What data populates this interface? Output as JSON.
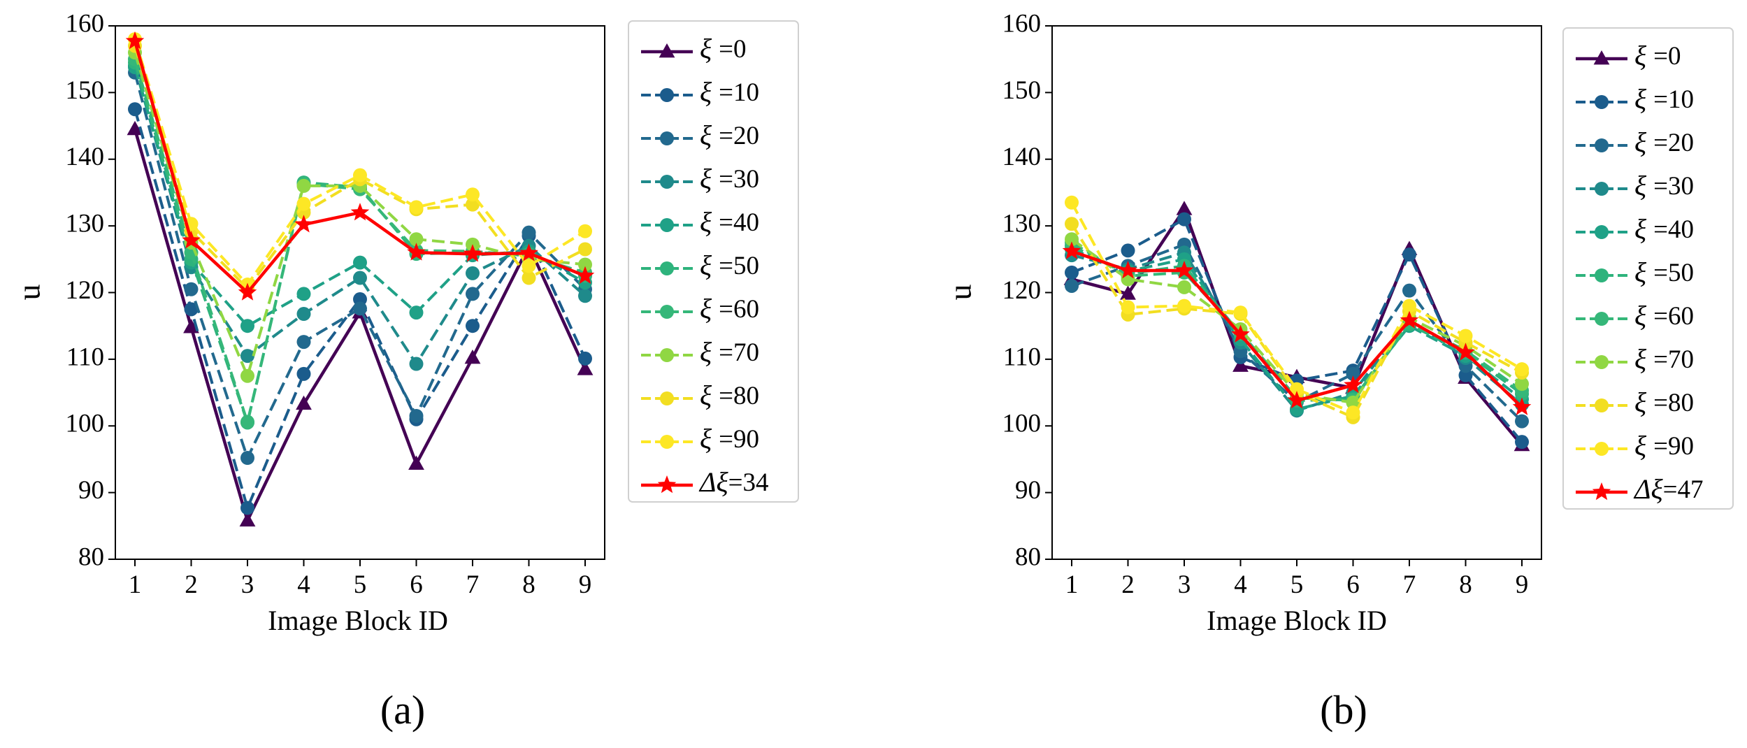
{
  "chart_data": [
    {
      "type": "line",
      "panel_label": "(a)",
      "xlabel": "Image Block ID",
      "ylabel": "u",
      "x": [
        1,
        2,
        3,
        4,
        5,
        6,
        7,
        8,
        9
      ],
      "ylim": [
        80,
        160
      ],
      "yticks": [
        80,
        90,
        100,
        110,
        120,
        130,
        140,
        150,
        160
      ],
      "legend_position": "outside-right",
      "series": [
        {
          "name": "=0",
          "symbol": "ξ",
          "color": "#440154",
          "style": "solid",
          "marker": "triangle",
          "values": [
            144.5,
            114.8,
            85.8,
            103.3,
            117.0,
            94.3,
            110.2,
            127.0,
            108.5
          ]
        },
        {
          "name": "=10",
          "symbol": "ξ",
          "color": "#1b5c8c",
          "style": "dashed",
          "marker": "circle",
          "values": [
            147.5,
            117.5,
            87.7,
            107.8,
            119.0,
            101.0,
            115.0,
            128.5,
            110.1
          ]
        },
        {
          "name": "=20",
          "symbol": "ξ",
          "color": "#22698e",
          "style": "dashed",
          "marker": "circle",
          "values": [
            153.0,
            120.5,
            95.2,
            112.6,
            117.6,
            101.5,
            119.8,
            129.0,
            120.5
          ]
        },
        {
          "name": "=30",
          "symbol": "ξ",
          "color": "#1f8a8b",
          "style": "dashed",
          "marker": "circle",
          "values": [
            154.0,
            123.8,
            110.5,
            116.8,
            122.2,
            109.3,
            122.9,
            127.0,
            119.5
          ]
        },
        {
          "name": "=40",
          "symbol": "ξ",
          "color": "#1fa187",
          "style": "dashed",
          "marker": "circle",
          "values": [
            153.8,
            124.5,
            115.0,
            119.8,
            124.5,
            117.0,
            125.6,
            126.2,
            121.5
          ]
        },
        {
          "name": "=50",
          "symbol": "ξ",
          "color": "#2eb37c",
          "style": "dashed",
          "marker": "circle",
          "values": [
            154.5,
            125.0,
            100.5,
            136.5,
            135.8,
            125.8,
            126.0,
            125.8,
            122.5
          ]
        },
        {
          "name": "=60",
          "symbol": "ξ",
          "color": "#35b779",
          "style": "dashed",
          "marker": "circle",
          "values": [
            155.0,
            126.0,
            100.6,
            136.3,
            135.5,
            126.3,
            126.2,
            125.5,
            123.0
          ]
        },
        {
          "name": "=70",
          "symbol": "ξ",
          "color": "#90d743",
          "style": "dashed",
          "marker": "circle",
          "values": [
            156.0,
            127.5,
            107.5,
            136.0,
            136.0,
            128.0,
            127.2,
            125.0,
            124.2
          ]
        },
        {
          "name": "=80",
          "symbol": "ξ",
          "color": "#f2de21",
          "style": "dashed",
          "marker": "circle",
          "values": [
            157.0,
            129.2,
            120.6,
            132.0,
            137.0,
            132.5,
            133.2,
            122.2,
            126.5
          ]
        },
        {
          "name": "=90",
          "symbol": "ξ",
          "color": "#fde725",
          "style": "dashed",
          "marker": "circle",
          "values": [
            158.0,
            130.3,
            121.2,
            133.3,
            137.6,
            132.8,
            134.7,
            124.0,
            129.2
          ]
        },
        {
          "name": "=34",
          "symbol": "Δξ",
          "color": "#ff0000",
          "style": "solid",
          "marker": "star",
          "values": [
            157.7,
            127.8,
            120.0,
            130.2,
            132.0,
            126.0,
            125.8,
            125.9,
            122.5
          ]
        }
      ]
    },
    {
      "type": "line",
      "panel_label": "(b)",
      "xlabel": "Image Block ID",
      "ylabel": "u",
      "x": [
        1,
        2,
        3,
        4,
        5,
        6,
        7,
        8,
        9
      ],
      "ylim": [
        80,
        160
      ],
      "yticks": [
        80,
        90,
        100,
        110,
        120,
        130,
        140,
        150,
        160
      ],
      "legend_position": "outside-right",
      "series": [
        {
          "name": "=0",
          "symbol": "ξ",
          "color": "#440154",
          "style": "solid",
          "marker": "triangle",
          "values": [
            122.0,
            119.8,
            132.5,
            109.0,
            107.3,
            105.7,
            126.5,
            107.2,
            97.1
          ]
        },
        {
          "name": "=10",
          "symbol": "ξ",
          "color": "#1b5c8c",
          "style": "dashed",
          "marker": "circle",
          "values": [
            123.0,
            126.3,
            131.0,
            110.3,
            106.8,
            108.3,
            125.7,
            107.6,
            97.6
          ]
        },
        {
          "name": "=20",
          "symbol": "ξ",
          "color": "#22698e",
          "style": "dashed",
          "marker": "circle",
          "values": [
            121.0,
            124.0,
            127.2,
            111.2,
            103.6,
            107.8,
            120.3,
            109.0,
            100.7
          ]
        },
        {
          "name": "=30",
          "symbol": "ξ",
          "color": "#1f8a8b",
          "style": "dashed",
          "marker": "circle",
          "values": [
            125.6,
            123.5,
            126.0,
            112.5,
            102.3,
            105.0,
            116.0,
            110.2,
            103.2
          ]
        },
        {
          "name": "=40",
          "symbol": "ξ",
          "color": "#1fa187",
          "style": "dashed",
          "marker": "circle",
          "values": [
            126.5,
            123.2,
            125.0,
            113.0,
            102.5,
            104.5,
            115.0,
            110.5,
            104.0
          ]
        },
        {
          "name": "=50",
          "symbol": "ξ",
          "color": "#2eb37c",
          "style": "dashed",
          "marker": "circle",
          "values": [
            127.0,
            122.8,
            124.0,
            113.8,
            103.8,
            104.0,
            115.2,
            111.0,
            104.8
          ]
        },
        {
          "name": "=60",
          "symbol": "ξ",
          "color": "#35b779",
          "style": "dashed",
          "marker": "circle",
          "values": [
            127.5,
            122.5,
            123.0,
            114.0,
            104.2,
            103.8,
            115.5,
            111.3,
            105.3
          ]
        },
        {
          "name": "=70",
          "symbol": "ξ",
          "color": "#90d743",
          "style": "dashed",
          "marker": "circle",
          "values": [
            128.0,
            122.0,
            120.8,
            114.5,
            104.8,
            103.5,
            116.2,
            112.0,
            106.3
          ]
        },
        {
          "name": "=80",
          "symbol": "ξ",
          "color": "#f2de21",
          "style": "dashed",
          "marker": "circle",
          "values": [
            130.3,
            116.7,
            117.6,
            116.8,
            105.0,
            101.3,
            117.2,
            112.5,
            108.0
          ]
        },
        {
          "name": "=90",
          "symbol": "ξ",
          "color": "#fde725",
          "style": "dashed",
          "marker": "circle",
          "values": [
            133.5,
            117.8,
            118.0,
            117.0,
            105.5,
            102.0,
            118.0,
            113.5,
            108.5
          ]
        },
        {
          "name": "=47",
          "symbol": "Δξ",
          "color": "#ff0000",
          "style": "solid",
          "marker": "star",
          "values": [
            126.2,
            123.3,
            123.3,
            113.7,
            103.8,
            106.1,
            115.8,
            111.0,
            102.8
          ]
        }
      ]
    }
  ]
}
